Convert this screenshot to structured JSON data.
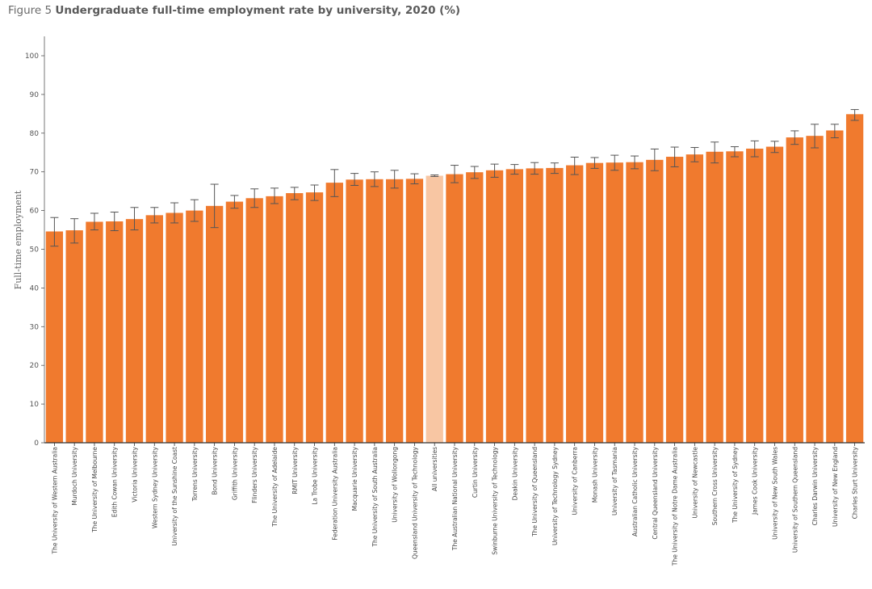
{
  "title": {
    "prefix": "Figure 5",
    "main": "Undergraduate full-time employment rate by university, 2020 (%)"
  },
  "colors": {
    "bar": "#f07a2e",
    "highlight": "#f8c6a3",
    "error": "#555555"
  },
  "chart_data": {
    "type": "bar",
    "title": "Undergraduate full-time employment rate by university, 2020 (%)",
    "xlabel": "",
    "ylabel": "Full-time employment",
    "ylim": [
      0,
      100
    ],
    "yticks": [
      0,
      10,
      20,
      30,
      40,
      50,
      60,
      70,
      80,
      90,
      100
    ],
    "grid": false,
    "highlight_category": "All universities",
    "categories": [
      "The University of Western Australia",
      "Murdoch University",
      "The University of Melbourne",
      "Edith Cowan University",
      "Victoria University",
      "Western Sydney University",
      "University of the Sunshine Coast",
      "Torrens University",
      "Bond University",
      "Griffith University",
      "Flinders University",
      "The University of Adelaide",
      "RMIT University",
      "La Trobe University",
      "Federation University Australia",
      "Macquarie University",
      "The University of South Australia",
      "University of Wollongong",
      "Queensland University of Technology",
      "All universities",
      "The Australian National University",
      "Curtin University",
      "Swinburne University of Technology",
      "Deakin University",
      "The University of Queensland",
      "University of Technology Sydney",
      "University of Canberra",
      "Monash University",
      "University of Tasmania",
      "Australian Catholic University",
      "Central Queensland University",
      "The University of Notre Dame Australia",
      "University of Newcastle",
      "Southern Cross University",
      "The University of Sydney",
      "James Cook University",
      "University of New South Wales",
      "University of Southern Queensland",
      "Charles Darwin University",
      "University of New England",
      "Charles Sturt University"
    ],
    "values": [
      54.6,
      54.9,
      57.1,
      57.2,
      57.8,
      58.8,
      59.4,
      60.0,
      61.2,
      62.3,
      63.2,
      63.7,
      64.5,
      64.7,
      67.2,
      68.0,
      68.1,
      68.1,
      68.2,
      69.0,
      69.4,
      69.9,
      70.4,
      70.7,
      70.9,
      71.0,
      71.7,
      72.3,
      72.4,
      72.5,
      73.1,
      73.9,
      74.5,
      75.2,
      75.3,
      76.0,
      76.5,
      78.9,
      79.3,
      80.7,
      84.9
    ],
    "error_low": [
      50.8,
      51.6,
      55.0,
      54.8,
      55.0,
      56.8,
      56.8,
      57.2,
      55.6,
      60.6,
      60.8,
      61.8,
      62.8,
      62.6,
      63.6,
      66.5,
      66.2,
      65.8,
      66.9,
      68.8,
      67.2,
      68.3,
      68.6,
      69.4,
      69.4,
      69.6,
      69.3,
      70.9,
      70.4,
      70.8,
      70.3,
      71.3,
      72.6,
      72.3,
      73.9,
      73.9,
      75.0,
      77.1,
      76.2,
      78.8,
      83.3
    ],
    "error_high": [
      58.2,
      57.9,
      59.3,
      59.6,
      60.8,
      60.8,
      62.0,
      62.8,
      66.8,
      63.9,
      65.6,
      65.8,
      66.0,
      66.6,
      70.6,
      69.6,
      70.0,
      70.4,
      69.5,
      69.2,
      71.7,
      71.4,
      72.0,
      71.9,
      72.4,
      72.3,
      73.8,
      73.7,
      74.3,
      74.1,
      75.9,
      76.4,
      76.3,
      77.7,
      76.5,
      78.0,
      77.9,
      80.6,
      82.3,
      82.3,
      86.1
    ]
  }
}
